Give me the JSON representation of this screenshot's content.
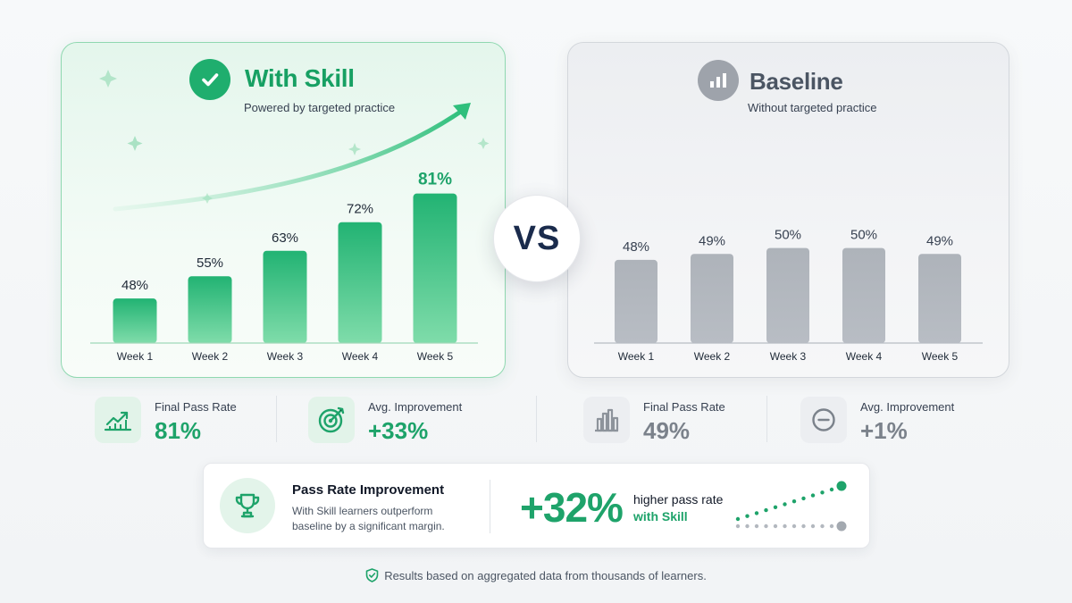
{
  "skill_panel": {
    "title": "With Skill",
    "subtitle": "Powered by targeted practice",
    "icon": "check-circle-icon",
    "accent": "#1fae6e"
  },
  "baseline_panel": {
    "title": "Baseline",
    "subtitle": "Without targeted practice",
    "icon": "bar-chart-icon",
    "accent": "#9ca3af"
  },
  "vs_label": "VS",
  "chart_data": [
    {
      "type": "bar",
      "series": [
        {
          "name": "With Skill",
          "values": [
            48,
            55,
            63,
            72,
            81
          ]
        }
      ],
      "categories": [
        "Week 1",
        "Week 2",
        "Week 3",
        "Week 4",
        "Week 5"
      ],
      "value_labels": [
        "48%",
        "55%",
        "63%",
        "72%",
        "81%"
      ],
      "ylim": [
        0,
        100
      ],
      "color": "#26b877",
      "highlight_last": true
    },
    {
      "type": "bar",
      "series": [
        {
          "name": "Baseline",
          "values": [
            48,
            49,
            50,
            50,
            49
          ]
        }
      ],
      "categories": [
        "Week 1",
        "Week 2",
        "Week 3",
        "Week 4",
        "Week 5"
      ],
      "value_labels": [
        "48%",
        "49%",
        "50%",
        "50%",
        "49%"
      ],
      "ylim": [
        0,
        100
      ],
      "color": "#b3b8bf",
      "highlight_last": false
    }
  ],
  "stats": {
    "skill_final": {
      "label": "Final Pass Rate",
      "value": "81%",
      "icon": "trend-up-icon"
    },
    "skill_improvement": {
      "label": "Avg. Improvement",
      "value": "+33%",
      "icon": "target-icon"
    },
    "base_final": {
      "label": "Final Pass Rate",
      "value": "49%",
      "icon": "bar-chart-icon"
    },
    "base_improvement": {
      "label": "Avg. Improvement",
      "value": "+1%",
      "icon": "minus-circle-icon"
    }
  },
  "summary": {
    "title": "Pass Rate Improvement",
    "description": "With Skill learners outperform baseline by a significant margin.",
    "big_value": "+32%",
    "caption_line1": "higher pass rate",
    "caption_line2": "with Skill",
    "icon": "trophy-icon"
  },
  "footer": {
    "text": "Results based on aggregated data from thousands of learners.",
    "icon": "shield-check-icon"
  },
  "colors": {
    "green": "#1ea36a",
    "gray_text": "#6b7280",
    "navy": "#1a2b4c"
  }
}
